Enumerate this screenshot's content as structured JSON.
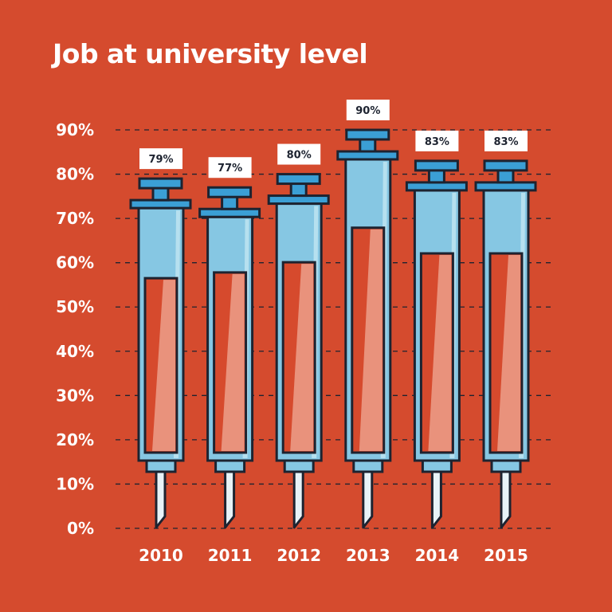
{
  "chart_data": {
    "type": "bar",
    "title": "Job at university level",
    "xlabel": "",
    "ylabel": "",
    "ylim": [
      0,
      90
    ],
    "yticks": [
      "0%",
      "10%",
      "20%",
      "30%",
      "40%",
      "50%",
      "60%",
      "70%",
      "80%",
      "90%"
    ],
    "categories": [
      "2010",
      "2011",
      "2012",
      "2013",
      "2014",
      "2015"
    ],
    "values": [
      79,
      77,
      80,
      90,
      83,
      83
    ],
    "value_labels": [
      "79%",
      "77%",
      "80%",
      "90%",
      "83%",
      "83%"
    ],
    "fill_levels": [
      56.5,
      57.8,
      60.1,
      67.9,
      62.1,
      62.1
    ],
    "grid": true,
    "colors": {
      "background": "#d54b2e",
      "barrel": "#86c7e3",
      "plunger": "#3b9fd5",
      "outline": "#1d2330",
      "liquid": "#d64a2d",
      "highlight": "#e9927c",
      "needle": "#e8f3f8"
    }
  }
}
